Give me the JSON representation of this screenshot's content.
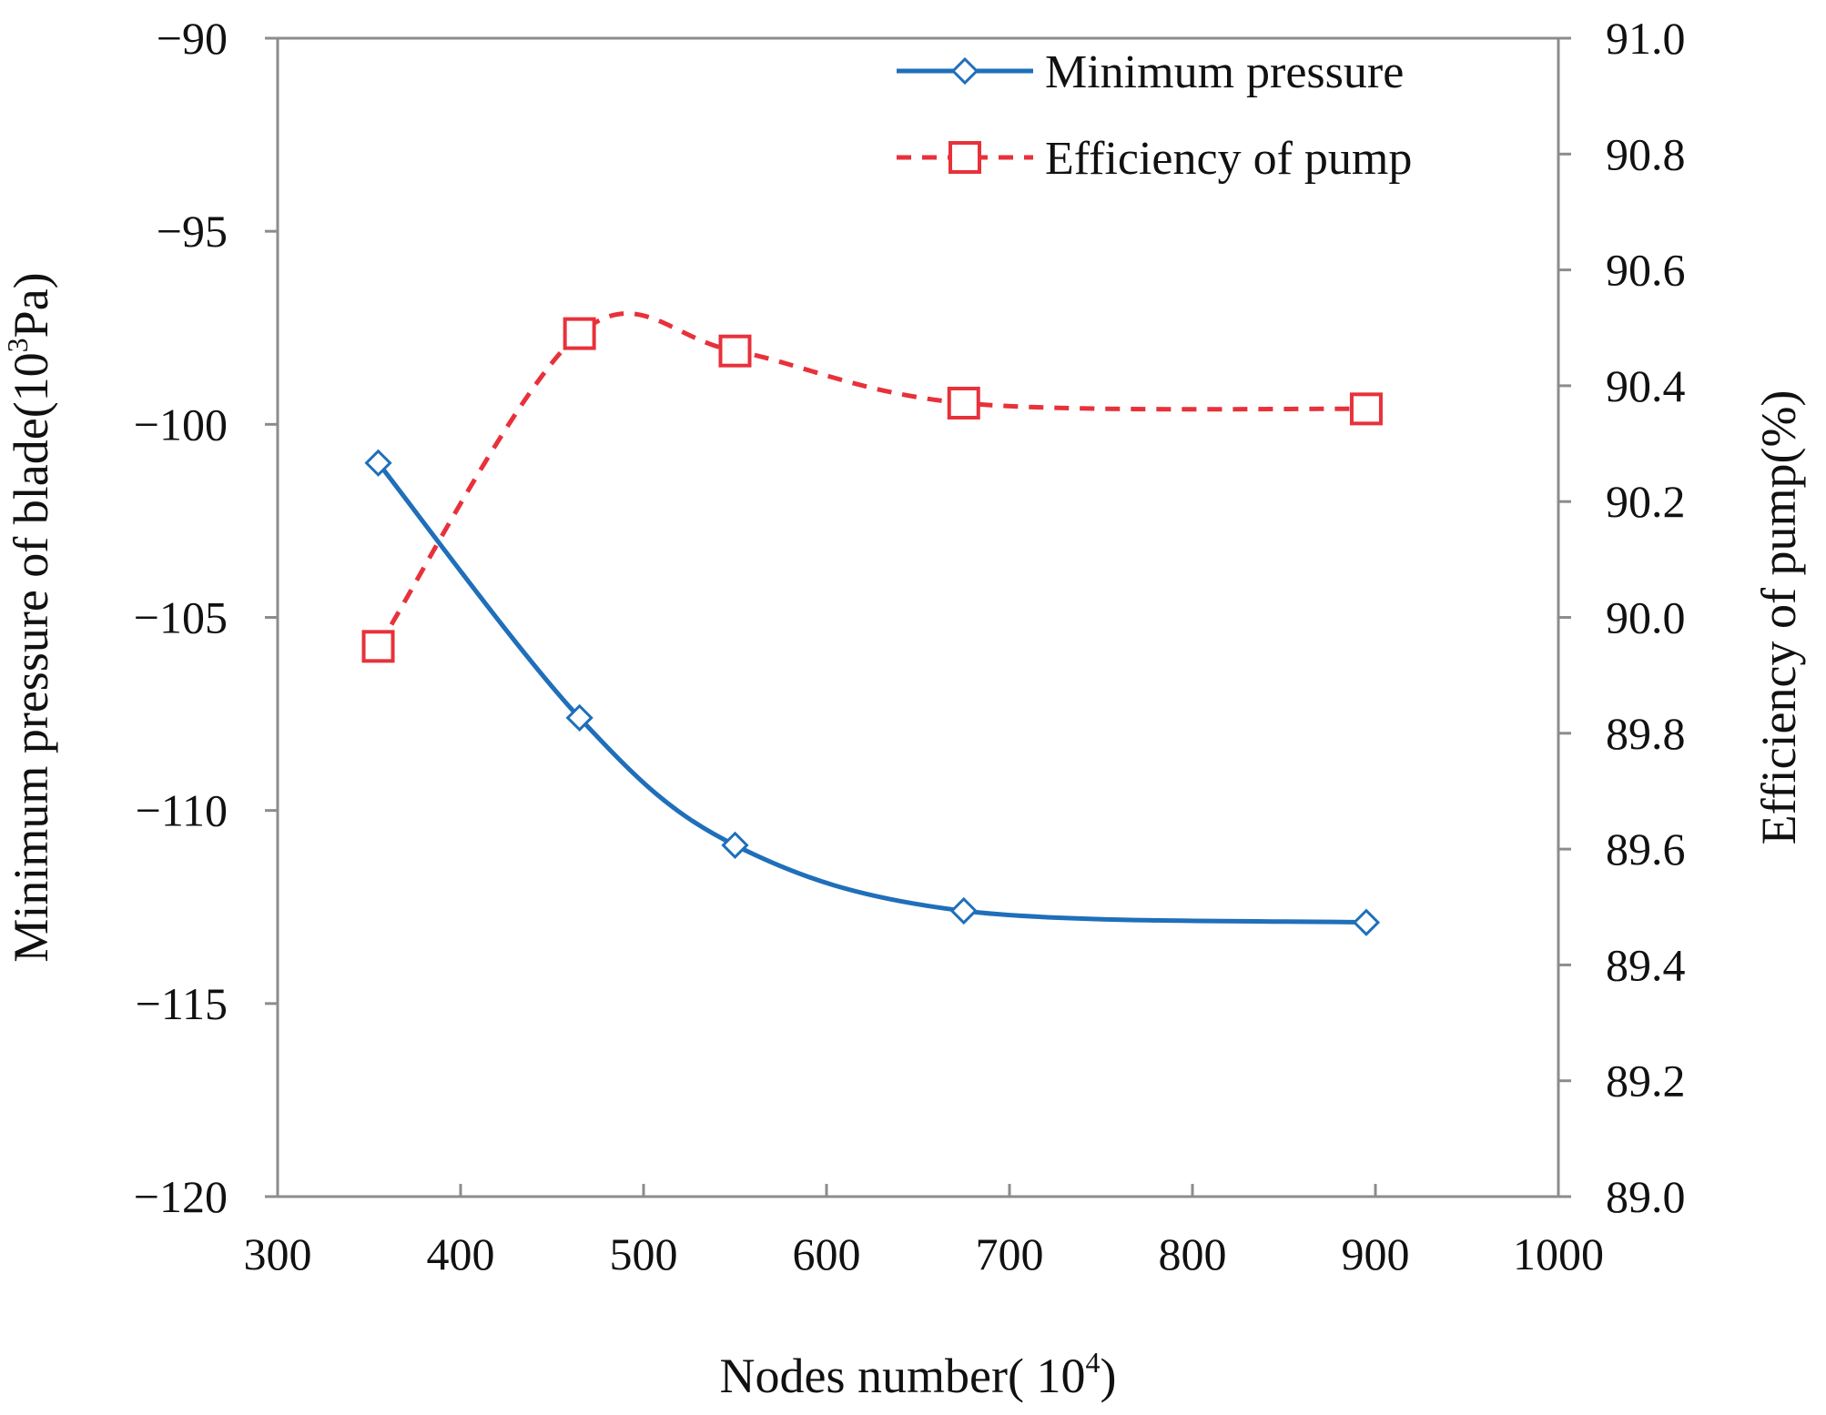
{
  "chart_data": {
    "type": "line",
    "title": "",
    "x_axis": {
      "label": "Nodes number( 10",
      "label_superscript": "4",
      "label_suffix": ")",
      "range": [
        300,
        1000
      ],
      "ticks": [
        300,
        400,
        500,
        600,
        700,
        800,
        900,
        1000
      ],
      "tick_labels": [
        "300",
        "400",
        "500",
        "600",
        "700",
        "800",
        "900",
        "1000"
      ]
    },
    "y_axis_left": {
      "label": "Minimum pressure of blade(10",
      "label_superscript": "3",
      "label_suffix": "Pa)",
      "range": [
        -120,
        -90
      ],
      "ticks": [
        -90,
        -95,
        -100,
        -105,
        -110,
        -115,
        -120
      ],
      "tick_labels": [
        "−90",
        "−95",
        "−100",
        "−105",
        "−110",
        "−115",
        "−120"
      ]
    },
    "y_axis_right": {
      "label": "Efficiency of pump(%)",
      "range": [
        89.0,
        91.0
      ],
      "ticks": [
        91.0,
        90.8,
        90.6,
        90.4,
        90.2,
        90.0,
        89.8,
        89.6,
        89.4,
        89.2,
        89.0
      ],
      "tick_labels": [
        "91.0",
        "90.8",
        "90.6",
        "90.4",
        "90.2",
        "90.0",
        "89.8",
        "89.6",
        "89.4",
        "89.2",
        "89.0"
      ]
    },
    "grid": false,
    "legend_position": "top-right",
    "series": [
      {
        "name": "Minimum pressure",
        "axis": "left",
        "color": "#1f6fba",
        "line_style": "solid",
        "marker": "diamond",
        "smooth": true,
        "x": [
          355,
          465,
          550,
          675,
          895
        ],
        "values": [
          -101.0,
          -107.6,
          -110.9,
          -112.6,
          -112.9
        ]
      },
      {
        "name": "Efficiency of pump",
        "axis": "right",
        "color": "#e8313a",
        "line_style": "dashed",
        "marker": "square",
        "smooth": true,
        "x": [
          355,
          465,
          550,
          675,
          895
        ],
        "values": [
          89.95,
          90.49,
          90.46,
          90.37,
          90.36
        ]
      }
    ]
  }
}
